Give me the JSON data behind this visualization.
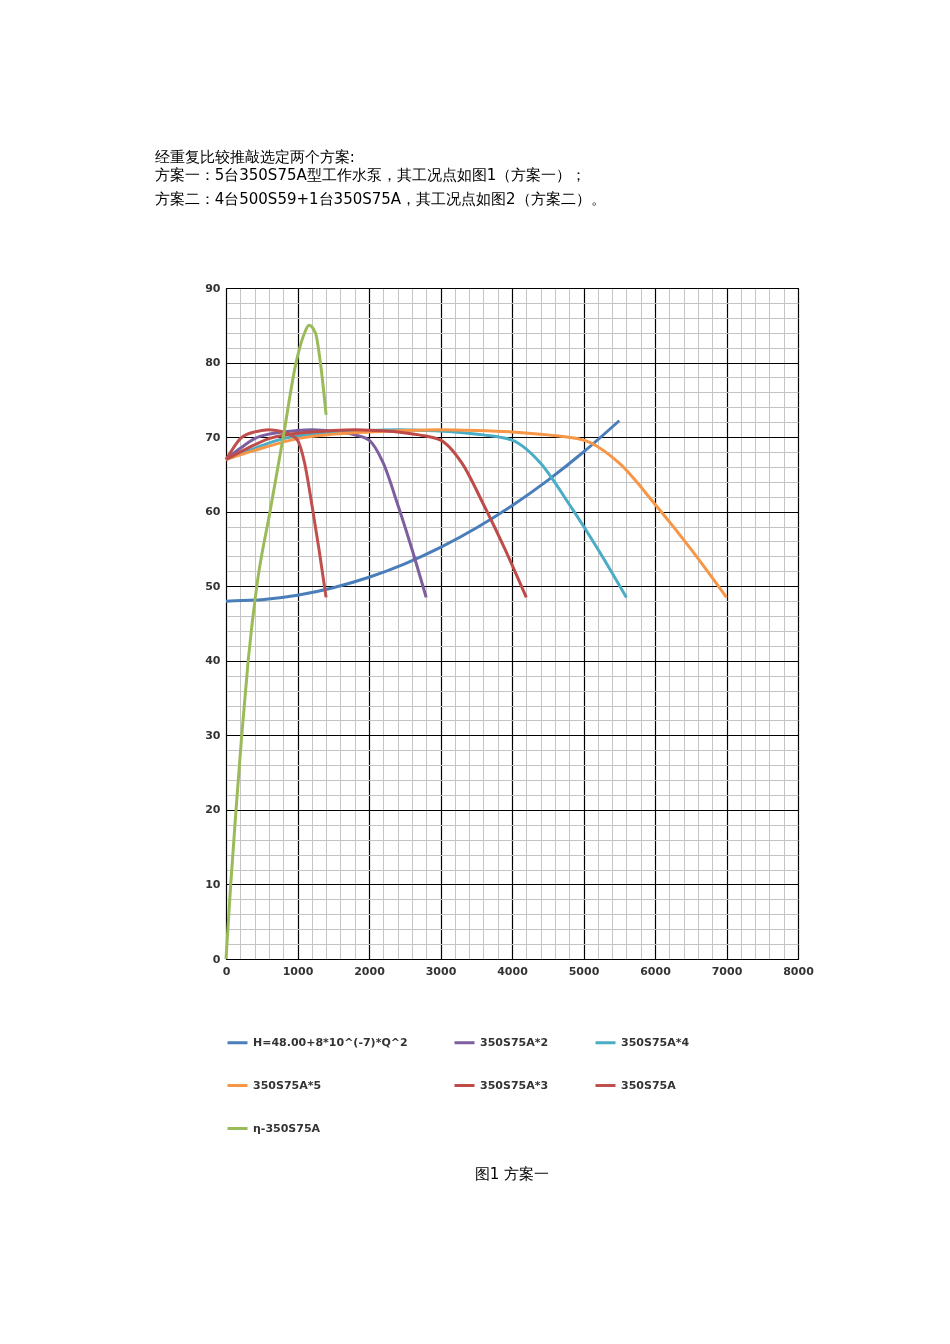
{
  "chart_data": {
    "type": "line",
    "title": "经重复比较推敲选定两个方案:",
    "subtitle": "方案一：5台350S75A型工作水泵，其工况点如图1（方案一）；",
    "annotations": [
      "方案二：4台500S59+1台350S75A，其工况点如图2（方案二）。",
      "图1  方案一"
    ],
    "xlim": [
      0,
      8000
    ],
    "xticks": [
      0,
      1000,
      2000,
      3000,
      4000,
      5000,
      6000,
      7000,
      8000
    ],
    "ylim": [
      0,
      90
    ],
    "yticks": [
      0,
      10,
      20,
      30,
      40,
      50,
      60,
      70,
      80,
      90
    ],
    "grid": true,
    "legend": "bottom",
    "marker": "none",
    "line_style": "solid",
    "series": [
      {
        "name": "H=48.00+8*10^(-7)*Q^2",
        "color": "#4a7ebb",
        "x": [
          0,
          500,
          1000,
          1500,
          2000,
          2500,
          3000,
          3500,
          4000,
          4500,
          5000,
          5500
        ],
        "values": [
          48,
          48.2,
          48.8,
          49.8,
          51.2,
          53,
          55.2,
          57.8,
          60.8,
          64.2,
          68,
          72.2
        ]
      },
      {
        "name": "350S75A*2",
        "color": "#7d5fa0",
        "x": [
          0,
          200,
          400,
          600,
          800,
          1000,
          1200,
          1400,
          1600,
          1800,
          2000,
          2200,
          2400,
          2600,
          2800
        ],
        "values": [
          67,
          68.5,
          69.8,
          70.4,
          70.7,
          70.9,
          71,
          70.9,
          70.7,
          70.3,
          69.6,
          66.5,
          61,
          55,
          48.5
        ]
      },
      {
        "name": "350S75A*4",
        "color": "#4bacc6",
        "x": [
          0,
          400,
          800,
          1200,
          1600,
          2000,
          2400,
          2800,
          3200,
          3600,
          4000,
          4400,
          4800,
          5200,
          5600
        ],
        "values": [
          67,
          68.5,
          69.8,
          70.4,
          70.7,
          70.9,
          71,
          70.9,
          70.7,
          70.3,
          69.6,
          66.5,
          61,
          55,
          48.5
        ]
      },
      {
        "name": "350S75A*5",
        "color": "#f79646",
        "x": [
          0,
          500,
          1000,
          1500,
          2000,
          2500,
          3000,
          3500,
          4000,
          4500,
          5000,
          5500,
          6000,
          6500,
          7000
        ],
        "values": [
          67,
          68.5,
          69.8,
          70.4,
          70.7,
          70.9,
          71,
          70.9,
          70.7,
          70.3,
          69.6,
          66.5,
          61,
          55,
          48.5
        ]
      },
      {
        "name": "350S75A*3",
        "color": "#be4b48",
        "x": [
          0,
          300,
          600,
          900,
          1200,
          1500,
          1800,
          2100,
          2400,
          2700,
          3000,
          3300,
          3600,
          3900,
          4200
        ],
        "values": [
          67,
          68.5,
          69.8,
          70.4,
          70.7,
          70.9,
          71,
          70.9,
          70.7,
          70.3,
          69.6,
          66.5,
          61,
          55,
          48.5
        ]
      },
      {
        "name": "350S75A",
        "color": "#c0504d",
        "x": [
          0,
          100,
          200,
          300,
          400,
          500,
          600,
          700,
          800,
          900,
          1000,
          1100,
          1200,
          1300,
          1400
        ],
        "values": [
          67,
          68.5,
          69.8,
          70.4,
          70.7,
          70.9,
          71,
          70.9,
          70.7,
          70.3,
          69.6,
          66.5,
          61,
          55,
          48.5
        ]
      },
      {
        "name": "η-350S75A",
        "color": "#9bbb59",
        "x": [
          0,
          66,
          140,
          220,
          310,
          430,
          615,
          800,
          980,
          1100,
          1160,
          1250,
          1320,
          1400
        ],
        "values": [
          0,
          10,
          20,
          30,
          40,
          50,
          60,
          70,
          80,
          84,
          85,
          84,
          80,
          73
        ]
      }
    ]
  }
}
